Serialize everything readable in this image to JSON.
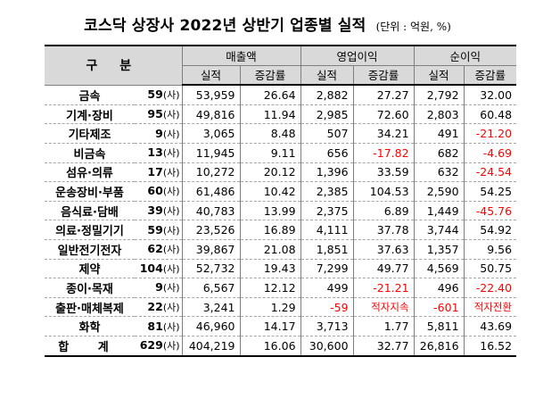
{
  "title": {
    "main": "코스닥 상장사 2022년 상반기 업종별 실적",
    "unit": "(단위 : 억원, %)"
  },
  "header": {
    "gubun": "구 분",
    "groups": [
      "매출액",
      "영업이익",
      "순이익"
    ],
    "sub": [
      "실적",
      "증감률",
      "실적",
      "증감률",
      "실적",
      "증감률"
    ]
  },
  "sa_label": "(사)",
  "rows": [
    {
      "cat": "금속",
      "cnt": "59",
      "rev": "53,959",
      "rev_chg": "26.64",
      "op": "2,882",
      "op_chg": "27.27",
      "net": "2,792",
      "net_chg": "32.00"
    },
    {
      "cat": "기계·장비",
      "cnt": "95",
      "rev": "49,816",
      "rev_chg": "11.94",
      "op": "2,985",
      "op_chg": "72.60",
      "net": "2,803",
      "net_chg": "60.48"
    },
    {
      "cat": "기타제조",
      "cnt": "9",
      "rev": "3,065",
      "rev_chg": "8.48",
      "op": "507",
      "op_chg": "34.21",
      "net": "491",
      "net_chg": "-21.20"
    },
    {
      "cat": "비금속",
      "cnt": "13",
      "rev": "11,945",
      "rev_chg": "9.11",
      "op": "656",
      "op_chg": "-17.82",
      "net": "682",
      "net_chg": "-4.69"
    },
    {
      "cat": "섬유·의류",
      "cnt": "17",
      "rev": "10,272",
      "rev_chg": "20.12",
      "op": "1,396",
      "op_chg": "33.59",
      "net": "632",
      "net_chg": "-24.54"
    },
    {
      "cat": "운송장비·부품",
      "cnt": "60",
      "rev": "61,486",
      "rev_chg": "10.42",
      "op": "2,385",
      "op_chg": "104.53",
      "net": "2,590",
      "net_chg": "54.25"
    },
    {
      "cat": "음식료·담배",
      "cnt": "39",
      "rev": "40,783",
      "rev_chg": "13.99",
      "op": "2,375",
      "op_chg": "6.89",
      "net": "1,449",
      "net_chg": "-45.76"
    },
    {
      "cat": "의료·정밀기기",
      "cnt": "59",
      "rev": "23,526",
      "rev_chg": "16.89",
      "op": "4,111",
      "op_chg": "37.78",
      "net": "3,744",
      "net_chg": "54.92"
    },
    {
      "cat": "일반전기전자",
      "cnt": "62",
      "rev": "39,867",
      "rev_chg": "21.08",
      "op": "1,851",
      "op_chg": "37.63",
      "net": "1,357",
      "net_chg": "9.56"
    },
    {
      "cat": "제약",
      "cnt": "104",
      "rev": "52,732",
      "rev_chg": "19.43",
      "op": "7,299",
      "op_chg": "49.77",
      "net": "4,569",
      "net_chg": "50.75"
    },
    {
      "cat": "종이·목재",
      "cnt": "9",
      "rev": "6,567",
      "rev_chg": "12.12",
      "op": "499",
      "op_chg": "-21.21",
      "net": "496",
      "net_chg": "-22.40"
    },
    {
      "cat": "출판·매체복제",
      "cnt": "22",
      "rev": "3,241",
      "rev_chg": "1.29",
      "op": "-59",
      "op_chg": "적자지속",
      "net": "-601",
      "net_chg": "적자전환"
    },
    {
      "cat": "화학",
      "cnt": "81",
      "rev": "46,960",
      "rev_chg": "14.17",
      "op": "3,713",
      "op_chg": "1.77",
      "net": "5,811",
      "net_chg": "43.69"
    },
    {
      "cat": "합 계",
      "cnt": "629",
      "rev": "404,219",
      "rev_chg": "16.06",
      "op": "30,600",
      "op_chg": "32.77",
      "net": "26,816",
      "net_chg": "16.52"
    }
  ],
  "colors": {
    "negative": "#ff0000",
    "header_bg": "#d9d9d9"
  }
}
